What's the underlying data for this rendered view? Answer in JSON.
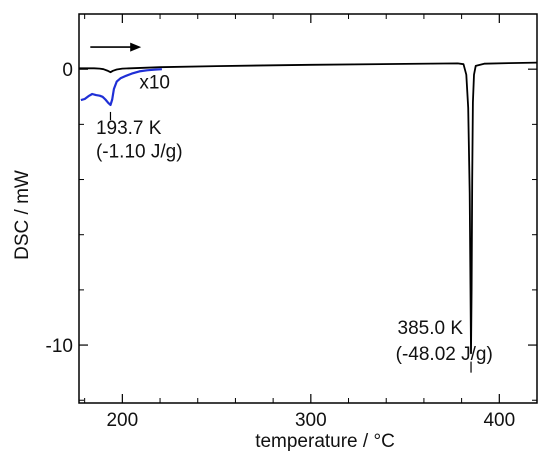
{
  "chart_data": {
    "type": "line",
    "xlabel": "temperature / °C",
    "ylabel": "DSC / mW",
    "xlim": [
      177,
      420
    ],
    "ylim": [
      -12.1,
      2.0
    ],
    "x_ticks": [
      200,
      300,
      400
    ],
    "y_ticks": [
      0,
      -10
    ],
    "x_minor_step": 20,
    "y_minor_step": 2,
    "grid": false,
    "series": [
      {
        "color": "#000000",
        "points": [
          [
            177,
            0.03
          ],
          [
            185,
            0.03
          ],
          [
            188,
            0.02
          ],
          [
            190,
            0.0
          ],
          [
            192,
            -0.05
          ],
          [
            193.7,
            -0.11
          ],
          [
            195,
            -0.06
          ],
          [
            197,
            -0.01
          ],
          [
            200,
            0.02
          ],
          [
            220,
            0.07
          ],
          [
            250,
            0.11
          ],
          [
            300,
            0.16
          ],
          [
            350,
            0.19
          ],
          [
            378,
            0.21
          ],
          [
            381,
            0.18
          ],
          [
            382.5,
            -0.2
          ],
          [
            383.5,
            -1.4
          ],
          [
            384.3,
            -4.5
          ],
          [
            384.7,
            -8.0
          ],
          [
            385.0,
            -10.3
          ],
          [
            385.3,
            -8.0
          ],
          [
            385.6,
            -4.0
          ],
          [
            386,
            -1.2
          ],
          [
            386.6,
            -0.2
          ],
          [
            387.5,
            0.12
          ],
          [
            392,
            0.2
          ],
          [
            405,
            0.22
          ],
          [
            420,
            0.24
          ]
        ]
      },
      {
        "color": "#1f2fd6",
        "points": [
          [
            178,
            -1.12
          ],
          [
            180,
            -1.08
          ],
          [
            182,
            -0.98
          ],
          [
            184,
            -0.9
          ],
          [
            186,
            -0.94
          ],
          [
            188,
            -0.96
          ],
          [
            189.5,
            -1.0
          ],
          [
            191,
            -1.1
          ],
          [
            192.5,
            -1.22
          ],
          [
            193.7,
            -1.3
          ],
          [
            194.6,
            -1.1
          ],
          [
            195.5,
            -0.72
          ],
          [
            197,
            -0.45
          ],
          [
            199,
            -0.33
          ],
          [
            202,
            -0.24
          ],
          [
            205,
            -0.16
          ],
          [
            209,
            -0.08
          ],
          [
            213,
            -0.04
          ],
          [
            217,
            -0.02
          ],
          [
            221,
            0.0
          ]
        ]
      }
    ],
    "annotations": [
      {
        "text": "x10",
        "x": 209,
        "y": -0.7
      },
      {
        "text": "193.7 K",
        "x": 186,
        "y": -2.35
      },
      {
        "text": "(-1.10 J/g)",
        "x": 186,
        "y": -3.2
      },
      {
        "text": "385.0 K",
        "x": 346,
        "y": -9.6
      },
      {
        "text": "(-48.02 J/g)",
        "x": 345,
        "y": -10.55
      }
    ],
    "peak_markers": [
      {
        "x": 193.7,
        "y1": -1.55,
        "y2": -1.85
      },
      {
        "x": 385.0,
        "y1": -10.6,
        "y2": -11.0
      }
    ],
    "heating_arrow": {
      "x1": 183,
      "x2": 210,
      "y": 0.8
    }
  }
}
